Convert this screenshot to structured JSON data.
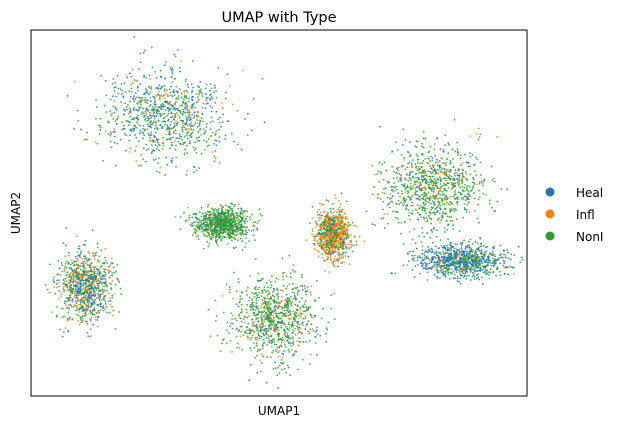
{
  "chart_data": {
    "type": "scatter",
    "title": "UMAP with Type",
    "xlabel": "UMAP1",
    "ylabel": "UMAP2",
    "xticks": [],
    "yticks": [],
    "grid": false,
    "legend_position": "right",
    "xlim": [
      0,
      100
    ],
    "ylim": [
      0,
      100
    ],
    "series": [
      {
        "name": "Heal",
        "color": "#1f77b4"
      },
      {
        "name": "Infl",
        "color": "#ff7f0e"
      },
      {
        "name": "NonI",
        "color": "#2ca02c"
      }
    ],
    "clusters": [
      {
        "center": [
          27,
          77
        ],
        "spread": [
          11.5,
          11
        ],
        "mix": [
          0.45,
          0.12,
          0.43
        ]
      },
      {
        "center": [
          81,
          57
        ],
        "spread": [
          9.5,
          10.5
        ],
        "mix": [
          0.22,
          0.1,
          0.68
        ]
      },
      {
        "center": [
          49,
          21
        ],
        "spread": [
          7.5,
          10
        ],
        "mix": [
          0.16,
          0.16,
          0.68
        ]
      },
      {
        "center": [
          11,
          30
        ],
        "spread": [
          4.7,
          8.5
        ],
        "mix": [
          0.38,
          0.25,
          0.37
        ]
      },
      {
        "center": [
          38.5,
          47
        ],
        "spread": [
          5,
          4
        ],
        "mix": [
          0.15,
          0.07,
          0.78
        ]
      },
      {
        "center": [
          61,
          44
        ],
        "spread": [
          3,
          6
        ],
        "mix": [
          0.12,
          0.6,
          0.28
        ]
      },
      {
        "center": [
          87,
          37
        ],
        "spread": [
          8,
          4
        ],
        "mix": [
          0.62,
          0.06,
          0.32
        ]
      }
    ]
  }
}
